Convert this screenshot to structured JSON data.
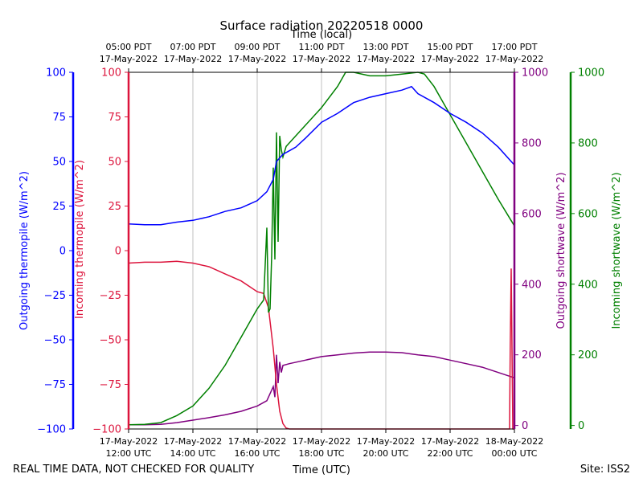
{
  "chart_data": {
    "type": "line",
    "title": "Surface radiation 20220518 0000",
    "top_axis_label": "Time (local)",
    "xlabel": "Time (UTC)",
    "footer_left": "REAL TIME DATA, NOT CHECKED FOR QUALITY",
    "footer_right": "Site: ISS2",
    "x_range_hours_utc": [
      12,
      24
    ],
    "bottom_ticks": [
      {
        "hour": 12,
        "line1": "17-May-2022",
        "line2": "12:00 UTC"
      },
      {
        "hour": 14,
        "line1": "17-May-2022",
        "line2": "14:00 UTC"
      },
      {
        "hour": 16,
        "line1": "17-May-2022",
        "line2": "16:00 UTC"
      },
      {
        "hour": 18,
        "line1": "17-May-2022",
        "line2": "18:00 UTC"
      },
      {
        "hour": 20,
        "line1": "17-May-2022",
        "line2": "20:00 UTC"
      },
      {
        "hour": 22,
        "line1": "17-May-2022",
        "line2": "22:00 UTC"
      },
      {
        "hour": 24,
        "line1": "18-May-2022",
        "line2": "00:00 UTC"
      }
    ],
    "top_ticks": [
      {
        "hour": 12,
        "line1": "05:00 PDT",
        "line2": "17-May-2022"
      },
      {
        "hour": 14,
        "line1": "07:00 PDT",
        "line2": "17-May-2022"
      },
      {
        "hour": 16,
        "line1": "09:00 PDT",
        "line2": "17-May-2022"
      },
      {
        "hour": 18,
        "line1": "11:00 PDT",
        "line2": "17-May-2022"
      },
      {
        "hour": 20,
        "line1": "13:00 PDT",
        "line2": "17-May-2022"
      },
      {
        "hour": 22,
        "line1": "15:00 PDT",
        "line2": "17-May-2022"
      },
      {
        "hour": 24,
        "line1": "17:00 PDT",
        "line2": "17-May-2022"
      }
    ],
    "axes": {
      "outgoing_thermopile": {
        "label": "Outgoing thermopile (W/m^2)",
        "color": "#0000ff",
        "ylim": [
          -100,
          100
        ],
        "ticks": [
          -100,
          -75,
          -50,
          -25,
          0,
          25,
          50,
          75,
          100
        ]
      },
      "incoming_thermopile": {
        "label": "Incoming thermopile (W/m^2)",
        "color": "#dc143c",
        "ylim": [
          -100,
          100
        ],
        "ticks": [
          -100,
          -75,
          -50,
          -25,
          0,
          25,
          50,
          75,
          100
        ]
      },
      "outgoing_shortwave": {
        "label": "Outgoing shortwave (W/m^2)",
        "color": "#800080",
        "ylim": [
          -10,
          1000
        ],
        "ticks": [
          0,
          200,
          400,
          600,
          800,
          1000
        ]
      },
      "incoming_shortwave": {
        "label": "Incoming shortwave (W/m^2)",
        "color": "#008000",
        "ylim": [
          -10,
          1000
        ],
        "ticks": [
          0,
          200,
          400,
          600,
          800,
          1000
        ]
      }
    },
    "series": [
      {
        "name": "Outgoing thermopile",
        "axis": "outgoing_thermopile",
        "color": "#0000ff",
        "x": [
          12.0,
          12.5,
          13.0,
          13.5,
          14.0,
          14.5,
          15.0,
          15.5,
          16.0,
          16.3,
          16.5,
          16.6,
          16.7,
          16.8,
          17.0,
          17.2,
          17.5,
          18.0,
          18.5,
          19.0,
          19.5,
          20.0,
          20.5,
          20.8,
          21.0,
          21.5,
          22.0,
          22.5,
          23.0,
          23.5,
          24.0
        ],
        "y": [
          15,
          14.5,
          14.5,
          16,
          17,
          19,
          22,
          24,
          28,
          33,
          40,
          50,
          52,
          54,
          56,
          58,
          63,
          72,
          77,
          83,
          86,
          88,
          90,
          92,
          88,
          83,
          77,
          72,
          66,
          58,
          48
        ]
      },
      {
        "name": "Incoming thermopile",
        "axis": "incoming_thermopile",
        "color": "#dc143c",
        "x": [
          12.0,
          12.5,
          13.0,
          13.5,
          14.0,
          14.5,
          15.0,
          15.5,
          16.0,
          16.2,
          16.35,
          16.5,
          16.6,
          16.7,
          16.8,
          16.9,
          17.0,
          23.85,
          23.87,
          23.9,
          23.95,
          24.0
        ],
        "y": [
          -7,
          -6.5,
          -6.5,
          -6,
          -7,
          -9,
          -13,
          -17,
          -23,
          -24,
          -32,
          -55,
          -75,
          -90,
          -97,
          -99.5,
          -100,
          -100,
          -55,
          -10,
          -100,
          -100
        ]
      },
      {
        "name": "Outgoing shortwave",
        "axis": "outgoing_shortwave",
        "color": "#800080",
        "x": [
          12.0,
          12.5,
          13.0,
          13.5,
          14.0,
          14.5,
          15.0,
          15.5,
          16.0,
          16.3,
          16.5,
          16.55,
          16.6,
          16.65,
          16.7,
          16.75,
          16.8,
          17.0,
          17.5,
          18.0,
          18.5,
          19.0,
          19.5,
          20.0,
          20.5,
          21.0,
          21.5,
          22.0,
          22.5,
          23.0,
          23.5,
          24.0
        ],
        "y": [
          2,
          2,
          3,
          8,
          15,
          22,
          30,
          40,
          55,
          70,
          110,
          80,
          200,
          120,
          180,
          150,
          170,
          175,
          185,
          195,
          200,
          205,
          208,
          208,
          206,
          200,
          195,
          185,
          175,
          165,
          150,
          135
        ]
      },
      {
        "name": "Incoming shortwave",
        "axis": "incoming_shortwave",
        "color": "#008000",
        "x": [
          12.0,
          12.5,
          13.0,
          13.5,
          14.0,
          14.5,
          15.0,
          15.5,
          16.0,
          16.2,
          16.3,
          16.35,
          16.4,
          16.45,
          16.5,
          16.55,
          16.6,
          16.65,
          16.7,
          16.75,
          16.8,
          16.9,
          17.0,
          17.5,
          18.0,
          18.5,
          18.75,
          19.0,
          19.5,
          20.0,
          20.5,
          21.0,
          21.2,
          21.5,
          22.0,
          22.5,
          23.0,
          23.5,
          24.0
        ],
        "y": [
          2,
          3,
          8,
          28,
          55,
          105,
          170,
          250,
          330,
          355,
          560,
          320,
          330,
          480,
          730,
          470,
          830,
          520,
          820,
          780,
          760,
          790,
          800,
          850,
          900,
          960,
          1000,
          1000,
          990,
          990,
          995,
          1000,
          995,
          960,
          880,
          800,
          720,
          640,
          565
        ]
      }
    ]
  }
}
